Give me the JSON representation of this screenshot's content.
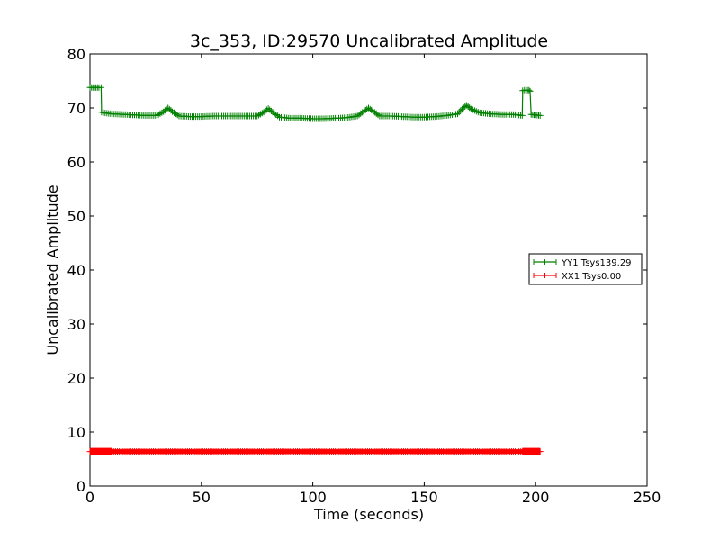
{
  "chart_data": {
    "type": "line",
    "title": "3c_353, ID:29570 Uncalibrated Amplitude",
    "xlabel": "Time (seconds)",
    "ylabel": "Uncalibrated Amplitude",
    "xlim": [
      0,
      250
    ],
    "ylim": [
      0,
      80
    ],
    "xticks": [
      "0",
      "50",
      "100",
      "150",
      "200",
      "250"
    ],
    "yticks": [
      "0",
      "10",
      "20",
      "30",
      "40",
      "50",
      "60",
      "70",
      "80"
    ],
    "grid": false,
    "legend_position": "right",
    "series": [
      {
        "name": "YY1 Tsys139.29",
        "color": "#008000",
        "marker": "+",
        "x": [
          0,
          2,
          4,
          5,
          5.2,
          6,
          10,
          15,
          20,
          25,
          30,
          33,
          35,
          37,
          40,
          45,
          50,
          55,
          60,
          65,
          70,
          75,
          78,
          80,
          82,
          85,
          90,
          95,
          100,
          105,
          110,
          115,
          120,
          123,
          125,
          127,
          130,
          135,
          140,
          145,
          150,
          155,
          160,
          165,
          167,
          169,
          171,
          175,
          180,
          185,
          190,
          194,
          194.2,
          195,
          197,
          197.5,
          198,
          200,
          202
        ],
        "y": [
          73.8,
          73.8,
          73.8,
          73.8,
          69.2,
          69.1,
          68.9,
          68.8,
          68.7,
          68.6,
          68.6,
          69.3,
          70.0,
          69.3,
          68.5,
          68.4,
          68.4,
          68.5,
          68.5,
          68.5,
          68.5,
          68.5,
          69.2,
          69.9,
          69.2,
          68.3,
          68.1,
          68.1,
          68.0,
          68.0,
          68.1,
          68.2,
          68.5,
          69.4,
          70.0,
          69.4,
          68.5,
          68.5,
          68.4,
          68.3,
          68.3,
          68.4,
          68.6,
          68.9,
          69.8,
          70.5,
          69.8,
          69.1,
          68.9,
          68.8,
          68.8,
          68.6,
          73.2,
          73.3,
          73.3,
          73.1,
          68.8,
          68.7,
          68.6
        ]
      },
      {
        "name": "XX1 Tsys0.00",
        "color": "#ff0000",
        "marker": "+",
        "x": [
          0,
          5,
          10,
          20,
          30,
          40,
          50,
          60,
          70,
          80,
          90,
          100,
          110,
          120,
          130,
          140,
          150,
          160,
          170,
          180,
          190,
          195,
          200,
          202
        ],
        "y": [
          6.4,
          6.4,
          6.4,
          6.4,
          6.4,
          6.4,
          6.4,
          6.4,
          6.4,
          6.4,
          6.4,
          6.4,
          6.4,
          6.4,
          6.4,
          6.4,
          6.4,
          6.4,
          6.4,
          6.4,
          6.4,
          6.4,
          6.4,
          6.4
        ]
      }
    ]
  }
}
